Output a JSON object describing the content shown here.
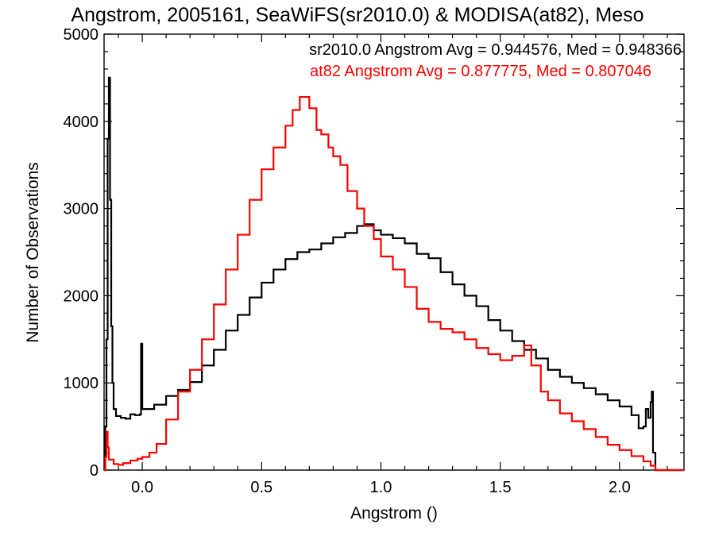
{
  "chart_data": {
    "type": "line",
    "title": "Angstrom, 2005161, SeaWiFS(sr2010.0) & MODISA(at82), Meso",
    "xlabel": "Angstrom ()",
    "ylabel": "Number of Observations",
    "xlim": [
      -0.16,
      2.27
    ],
    "ylim": [
      0,
      5000
    ],
    "xticks": [
      0.0,
      0.5,
      1.0,
      1.5,
      2.0
    ],
    "xtick_labels": [
      "0.0",
      "0.5",
      "1.0",
      "1.5",
      "2.0"
    ],
    "yticks": [
      0,
      1000,
      2000,
      3000,
      4000,
      5000
    ],
    "ytick_labels": [
      "0",
      "1000",
      "2000",
      "3000",
      "4000",
      "5000"
    ],
    "grid": false,
    "step": true,
    "series": [
      {
        "name": "sr2010.0",
        "color": "#000000",
        "annotation": "sr2010.0 Angstrom Avg = 0.944576, Med = 0.948366",
        "points": [
          [
            -0.16,
            0
          ],
          [
            -0.155,
            500
          ],
          [
            -0.15,
            1500
          ],
          [
            -0.145,
            3800
          ],
          [
            -0.14,
            4500
          ],
          [
            -0.135,
            3100
          ],
          [
            -0.13,
            1650
          ],
          [
            -0.125,
            1000
          ],
          [
            -0.12,
            700
          ],
          [
            -0.11,
            620
          ],
          [
            -0.09,
            600
          ],
          [
            -0.07,
            590
          ],
          [
            -0.05,
            640
          ],
          [
            -0.03,
            630
          ],
          [
            -0.01,
            640
          ],
          [
            -0.005,
            1450
          ],
          [
            0.0,
            700
          ],
          [
            0.05,
            750
          ],
          [
            0.1,
            850
          ],
          [
            0.15,
            920
          ],
          [
            0.2,
            1010
          ],
          [
            0.25,
            1200
          ],
          [
            0.3,
            1380
          ],
          [
            0.35,
            1600
          ],
          [
            0.4,
            1780
          ],
          [
            0.45,
            1980
          ],
          [
            0.5,
            2150
          ],
          [
            0.55,
            2300
          ],
          [
            0.6,
            2420
          ],
          [
            0.65,
            2500
          ],
          [
            0.7,
            2530
          ],
          [
            0.75,
            2600
          ],
          [
            0.8,
            2670
          ],
          [
            0.85,
            2720
          ],
          [
            0.9,
            2800
          ],
          [
            0.93,
            2820
          ],
          [
            0.97,
            2750
          ],
          [
            1.0,
            2700
          ],
          [
            1.05,
            2660
          ],
          [
            1.1,
            2600
          ],
          [
            1.15,
            2480
          ],
          [
            1.2,
            2430
          ],
          [
            1.25,
            2270
          ],
          [
            1.3,
            2130
          ],
          [
            1.35,
            2000
          ],
          [
            1.4,
            1880
          ],
          [
            1.45,
            1720
          ],
          [
            1.5,
            1600
          ],
          [
            1.55,
            1480
          ],
          [
            1.6,
            1380
          ],
          [
            1.65,
            1280
          ],
          [
            1.7,
            1150
          ],
          [
            1.75,
            1070
          ],
          [
            1.8,
            1000
          ],
          [
            1.85,
            940
          ],
          [
            1.9,
            870
          ],
          [
            1.95,
            800
          ],
          [
            2.0,
            730
          ],
          [
            2.05,
            630
          ],
          [
            2.08,
            480
          ],
          [
            2.1,
            500
          ],
          [
            2.11,
            700
          ],
          [
            2.12,
            600
          ],
          [
            2.13,
            780
          ],
          [
            2.135,
            900
          ],
          [
            2.14,
            200
          ],
          [
            2.15,
            0
          ],
          [
            2.27,
            0
          ]
        ]
      },
      {
        "name": "at82",
        "color": "#ff0000",
        "annotation": "at82 Angstrom Avg = 0.877775, Med = 0.807046",
        "points": [
          [
            -0.16,
            0
          ],
          [
            -0.155,
            150
          ],
          [
            -0.15,
            440
          ],
          [
            -0.145,
            260
          ],
          [
            -0.14,
            120
          ],
          [
            -0.12,
            70
          ],
          [
            -0.1,
            60
          ],
          [
            -0.08,
            80
          ],
          [
            -0.05,
            110
          ],
          [
            -0.02,
            130
          ],
          [
            0.0,
            150
          ],
          [
            0.03,
            200
          ],
          [
            0.06,
            300
          ],
          [
            0.1,
            580
          ],
          [
            0.15,
            900
          ],
          [
            0.2,
            1150
          ],
          [
            0.25,
            1500
          ],
          [
            0.3,
            1900
          ],
          [
            0.35,
            2300
          ],
          [
            0.4,
            2700
          ],
          [
            0.45,
            3100
          ],
          [
            0.5,
            3450
          ],
          [
            0.55,
            3700
          ],
          [
            0.6,
            3950
          ],
          [
            0.63,
            4130
          ],
          [
            0.66,
            4280
          ],
          [
            0.7,
            4150
          ],
          [
            0.73,
            3900
          ],
          [
            0.75,
            3850
          ],
          [
            0.78,
            3700
          ],
          [
            0.8,
            3600
          ],
          [
            0.83,
            3500
          ],
          [
            0.86,
            3200
          ],
          [
            0.9,
            3000
          ],
          [
            0.93,
            2800
          ],
          [
            0.97,
            2650
          ],
          [
            1.0,
            2450
          ],
          [
            1.05,
            2300
          ],
          [
            1.1,
            2100
          ],
          [
            1.15,
            1850
          ],
          [
            1.2,
            1700
          ],
          [
            1.25,
            1620
          ],
          [
            1.3,
            1580
          ],
          [
            1.35,
            1500
          ],
          [
            1.4,
            1400
          ],
          [
            1.45,
            1330
          ],
          [
            1.5,
            1260
          ],
          [
            1.55,
            1310
          ],
          [
            1.6,
            1430
          ],
          [
            1.63,
            1200
          ],
          [
            1.67,
            900
          ],
          [
            1.7,
            800
          ],
          [
            1.75,
            650
          ],
          [
            1.8,
            560
          ],
          [
            1.85,
            470
          ],
          [
            1.9,
            380
          ],
          [
            1.95,
            290
          ],
          [
            2.0,
            230
          ],
          [
            2.05,
            160
          ],
          [
            2.1,
            100
          ],
          [
            2.13,
            50
          ],
          [
            2.15,
            0
          ],
          [
            2.27,
            0
          ]
        ]
      }
    ]
  }
}
